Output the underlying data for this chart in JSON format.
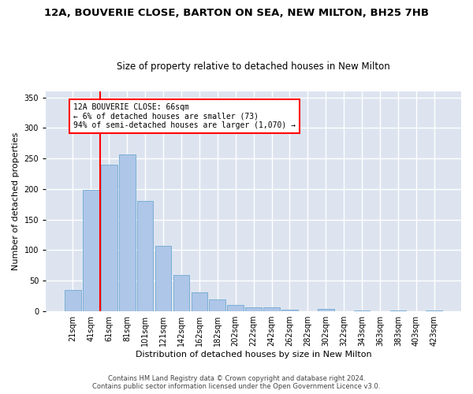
{
  "title": "12A, BOUVERIE CLOSE, BARTON ON SEA, NEW MILTON, BH25 7HB",
  "subtitle": "Size of property relative to detached houses in New Milton",
  "xlabel": "Distribution of detached houses by size in New Milton",
  "ylabel": "Number of detached properties",
  "categories": [
    "21sqm",
    "41sqm",
    "61sqm",
    "81sqm",
    "101sqm",
    "121sqm",
    "142sqm",
    "162sqm",
    "182sqm",
    "202sqm",
    "222sqm",
    "242sqm",
    "262sqm",
    "282sqm",
    "302sqm",
    "322sqm",
    "343sqm",
    "363sqm",
    "383sqm",
    "403sqm",
    "423sqm"
  ],
  "bar_heights": [
    35,
    199,
    240,
    257,
    181,
    107,
    59,
    31,
    19,
    10,
    6,
    6,
    3,
    0,
    4,
    0,
    1,
    0,
    2,
    0,
    2
  ],
  "bar_color": "#aec6e8",
  "bar_edge_color": "#7aafd4",
  "annotation_box_text": "12A BOUVERIE CLOSE: 66sqm\n← 6% of detached houses are smaller (73)\n94% of semi-detached houses are larger (1,070) →",
  "red_line_x": 1.5,
  "ylim": [
    0,
    360
  ],
  "yticks": [
    0,
    50,
    100,
    150,
    200,
    250,
    300,
    350
  ],
  "footer_line1": "Contains HM Land Registry data © Crown copyright and database right 2024.",
  "footer_line2": "Contains public sector information licensed under the Open Government Licence v3.0.",
  "bg_color": "#dde4f0",
  "grid_color": "#ffffff",
  "title_fontsize": 9.5,
  "subtitle_fontsize": 8.5,
  "xlabel_fontsize": 8,
  "ylabel_fontsize": 8,
  "tick_fontsize": 7,
  "footer_fontsize": 6,
  "annot_fontsize": 7
}
